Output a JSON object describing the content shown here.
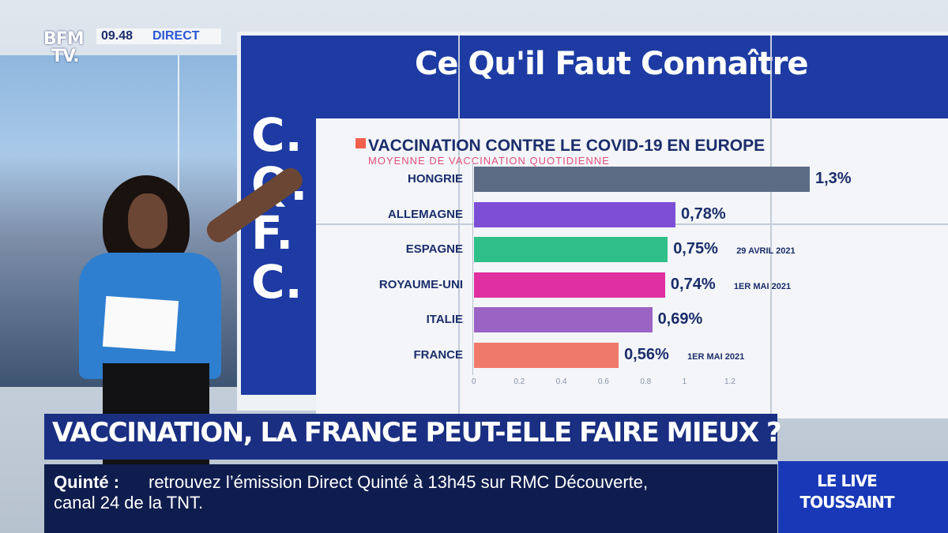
{
  "broadcast": {
    "logo_line1": "BFM",
    "logo_line2": "TV.",
    "time": "09.48",
    "live_label": "DIRECT"
  },
  "screen": {
    "headline": "Ce Qu'il Faut Connaître",
    "side_letters": [
      "C.",
      "Q.",
      "F.",
      "C."
    ]
  },
  "chart_data": {
    "type": "bar",
    "title": "VACCINATION CONTRE LE COVID-19 EN EUROPE",
    "subtitle": "MOYENNE DE VACCINATION QUOTIDIENNE",
    "categories": [
      "HONGRIE",
      "ALLEMAGNE",
      "ESPAGNE",
      "ROYAUME-UNI",
      "ITALIE",
      "FRANCE"
    ],
    "values": [
      1.3,
      0.78,
      0.75,
      0.74,
      0.69,
      0.56
    ],
    "value_labels": [
      "1,3%",
      "0,78%",
      "0,75%",
      "0,74%",
      "0,69%",
      "0,56%"
    ],
    "notes": [
      "",
      "",
      "29 AVRIL 2021",
      "1ER MAI 2021",
      "",
      "1ER MAI 2021"
    ],
    "colors": [
      "#5b6b84",
      "#7d4fd6",
      "#2fc08a",
      "#e02fa0",
      "#9a63c4",
      "#f07a6a"
    ],
    "x_ticks": [
      "0",
      "0.2",
      "0.4",
      "0.6",
      "0.8",
      "1",
      "1.2"
    ],
    "xlim": [
      0,
      1.2
    ]
  },
  "lower_third": {
    "title": "VACCINATION, LA FRANCE PEUT-ELLE FAIRE MIEUX ?",
    "ticker_label": "Quinté :",
    "ticker_text": "retrouvez l’émission Direct Quinté à 13h45 sur RMC Découverte,",
    "ticker_text_line2": "canal 24 de la TNT.",
    "live_line1": "LE LIVE",
    "live_line2": "TOUSSAINT"
  }
}
